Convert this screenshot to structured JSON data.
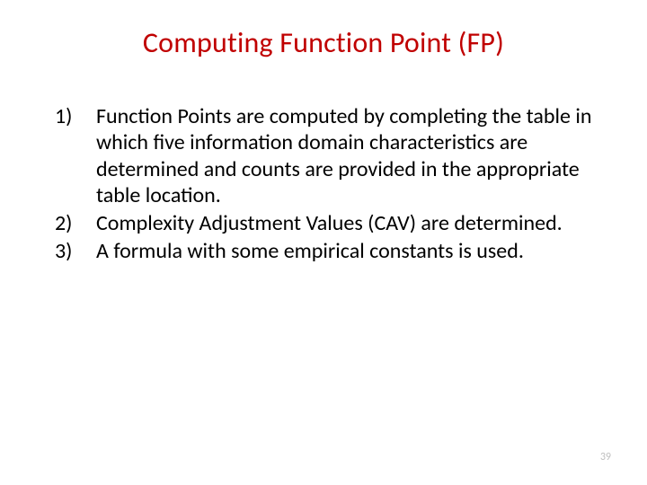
{
  "title": "Computing Function Point (FP)",
  "items": [
    "Function Points are computed by completing the table in which five information domain characteristics are determined and counts are provided in the appropriate table location.",
    "Complexity Adjustment Values (CAV) are determined.",
    "A formula with some empirical constants is used."
  ],
  "page_number": "39",
  "colors": {
    "title": "#c00000",
    "body_text": "#000000",
    "page_number": "#bfbfbf",
    "background": "#ffffff"
  },
  "typography": {
    "title_fontsize": 32,
    "body_fontsize": 24,
    "page_number_fontsize": 12,
    "font_family": "Calibri"
  }
}
